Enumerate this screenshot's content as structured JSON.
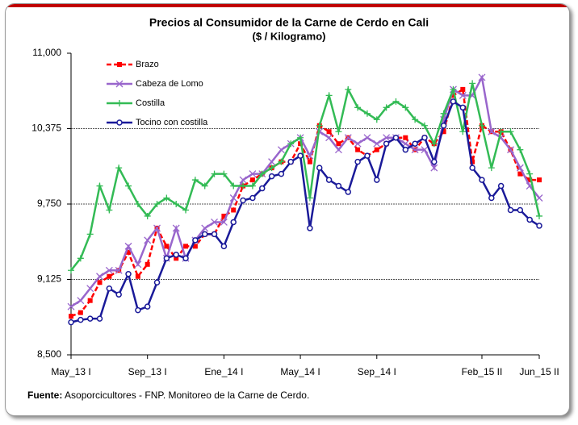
{
  "chart_data": {
    "type": "line",
    "title": "Precios al Consumidor  de la Carne de Cerdo en Cali",
    "subtitle": "($ / Kilogramo)",
    "categories": [
      "May_13 I",
      null,
      null,
      null,
      null,
      null,
      null,
      null,
      "Sep_13 I",
      null,
      null,
      null,
      null,
      null,
      null,
      null,
      "Ene_14 I",
      null,
      null,
      null,
      null,
      null,
      null,
      null,
      "May_14 I",
      null,
      null,
      null,
      null,
      null,
      null,
      null,
      "Sep_14 I",
      null,
      null,
      null,
      null,
      null,
      null,
      null,
      null,
      null,
      null,
      "Feb_15 II",
      null,
      null,
      null,
      null,
      null,
      "Jun_15 II"
    ],
    "series": [
      {
        "name": "Brazo",
        "color": "#ff0000",
        "marker": "square",
        "dashed": true,
        "values": [
          8820,
          8850,
          8950,
          9100,
          9150,
          9200,
          9350,
          9150,
          9250,
          9550,
          9400,
          9300,
          9400,
          9400,
          9500,
          9500,
          9650,
          9700,
          9900,
          9950,
          10000,
          10050,
          10100,
          10100,
          10250,
          10100,
          10400,
          10350,
          10250,
          10300,
          10200,
          10150,
          10200,
          10250,
          10300,
          10300,
          10200,
          10300,
          10250,
          10350,
          10650,
          10700,
          10100,
          10400,
          10350,
          10350,
          10200,
          10000,
          9950,
          9950
        ]
      },
      {
        "name": "Cabeza de Lomo",
        "color": "#9966cc",
        "marker": "x",
        "dashed": false,
        "values": [
          8900,
          8950,
          9050,
          9150,
          9200,
          9200,
          9400,
          9250,
          9450,
          9550,
          9300,
          9550,
          9300,
          9450,
          9550,
          9600,
          9600,
          9800,
          9950,
          10000,
          10000,
          10100,
          10200,
          10250,
          10300,
          10150,
          10350,
          10300,
          10200,
          10300,
          10250,
          10300,
          10250,
          10300,
          10300,
          10250,
          10200,
          10200,
          10050,
          10450,
          10700,
          10650,
          10650,
          10800,
          10350,
          10300,
          10200,
          10050,
          9900,
          9800
        ]
      },
      {
        "name": "Costilla",
        "color": "#33bb55",
        "marker": "plus",
        "dashed": false,
        "values": [
          9200,
          9300,
          9500,
          9900,
          9700,
          10050,
          9900,
          9750,
          9650,
          9750,
          9800,
          9750,
          9700,
          9950,
          9900,
          10000,
          10000,
          9900,
          9900,
          9900,
          10000,
          10050,
          10100,
          10250,
          10300,
          9800,
          10400,
          10650,
          10350,
          10700,
          10550,
          10500,
          10450,
          10550,
          10600,
          10550,
          10450,
          10400,
          10250,
          10500,
          10700,
          10350,
          10750,
          10400,
          10050,
          10350,
          10350,
          10200,
          10000,
          9650
        ]
      },
      {
        "name": "Tocino con costilla",
        "color": "#1a1a99",
        "marker": "circle",
        "dashed": false,
        "values": [
          8770,
          8790,
          8800,
          8800,
          9050,
          9000,
          9170,
          8870,
          8900,
          9100,
          9300,
          9330,
          9300,
          9450,
          9500,
          9500,
          9400,
          9600,
          9780,
          9800,
          9880,
          9980,
          10000,
          10100,
          10150,
          9550,
          10050,
          9950,
          9900,
          9850,
          10100,
          10150,
          9950,
          10250,
          10300,
          10200,
          10250,
          10300,
          10100,
          10400,
          10600,
          10550,
          10050,
          9950,
          9800,
          9900,
          9700,
          9700,
          9620,
          9570
        ]
      }
    ],
    "ylim": [
      8500,
      11000
    ],
    "yticks": [
      {
        "value": 8500,
        "label": "8,500"
      },
      {
        "value": 9125,
        "label": "9,125"
      },
      {
        "value": 9750,
        "label": "9,750"
      },
      {
        "value": 10375,
        "label": "10,375"
      },
      {
        "value": 11000,
        "label": "11,000"
      }
    ],
    "grid": true,
    "legend": "upper left",
    "source": {
      "label": "Fuente:",
      "text": " Asoporcicultores - FNP.  Monitoreo de la Carne de Cerdo."
    }
  }
}
